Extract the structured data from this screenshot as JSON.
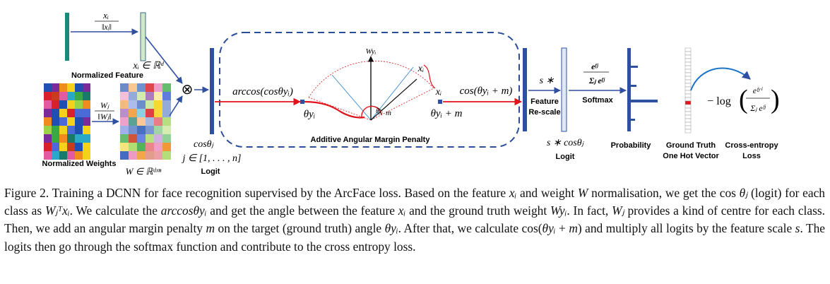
{
  "figure": {
    "labels": {
      "norm_feature_frac_num": "xᵢ",
      "norm_feature_frac_den": "‖xᵢ‖",
      "feature_space": "xᵢ ∈ ℝᵈ",
      "normalized_feature": "Normalized Feature",
      "norm_weight_frac_num": "Wⱼ",
      "norm_weight_frac_den": "‖Wⱼ‖",
      "normalized_weights": "Normalized Weights",
      "weight_space": "W ∈ ℝᵈˣⁿ",
      "otimes": "⊗",
      "cos_theta_j": "cosθⱼ",
      "j_range": "j ∈ [1, . . . , n]",
      "logit_left": "Logit",
      "arccos": "arccos(cosθyᵢ)",
      "theta_yi": "θyᵢ",
      "w_yi": "Wyᵢ",
      "x_i_top": "xᵢ",
      "x_i_mid": "xᵢ",
      "theta_inner": "θyᵢ",
      "m_inner": "m",
      "cos_theta_plus_m": "cos(θyᵢ + m)",
      "theta_plus_m": "θyᵢ + m",
      "angular_penalty": "Additive Angular Margin Penalty",
      "s_times": "s ∗",
      "feature_rescale_1": "Feature",
      "feature_rescale_2": "Re-scale",
      "s_cos_theta": "s ∗ cosθⱼ",
      "logit_right": "Logit",
      "softmax_num": "eᶠʲ",
      "softmax_den": "Σⱼ eᶠʲ",
      "softmax": "Softmax",
      "probability": "Probability",
      "ground_truth_1": "Ground Truth",
      "ground_truth_2": "One Hot Vector",
      "ce_minus_log": "− log",
      "ce_num": "eᶠʸⁱ",
      "ce_den": "Σⱼ eᶠʲ",
      "ce_1": "Cross-entropy",
      "ce_2": "Loss"
    },
    "colors": {
      "dark_blue": "#2f4fa0",
      "light_blue_fill": "#dfe8f8",
      "teal": "#1a8a7a",
      "light_green": "#cfe9c8",
      "arrow_red": "#e0141c",
      "dash_blue": "#2b4e9b",
      "arc_curve": "#1a73c9"
    }
  },
  "caption": {
    "p1": "Figure 2. Training a DCNN for face recognition supervised by the ArcFace loss. Based on the feature ",
    "m1": "xᵢ",
    "p2": " and weight ",
    "m2": "W",
    "p3": " normalisation, we get the cos ",
    "m3": "θⱼ",
    "p4": " (logit) for each class as ",
    "m4": "Wⱼᵀxᵢ",
    "p5": ". We calculate the ",
    "m5": "arccosθyᵢ",
    "p6": " and get the angle between the feature ",
    "m6": "xᵢ",
    "p7": " and the ground truth weight ",
    "m7": "Wyᵢ",
    "p8": ". In fact, ",
    "m8": "Wⱼ",
    "p9": " provides a kind of centre for each class. Then, we add an angular margin penalty ",
    "m9": "m",
    "p10": " on the target (ground truth) angle ",
    "m10": "θyᵢ",
    "p11": ". After that, we calculate cos(",
    "m11": "θyᵢ",
    "p12": " + ",
    "m12": "m",
    "p13": ") and multiply all logits by the feature scale ",
    "m13": "s",
    "p14": ". The logits then go through the softmax function and contribute to the cross entropy loss."
  }
}
